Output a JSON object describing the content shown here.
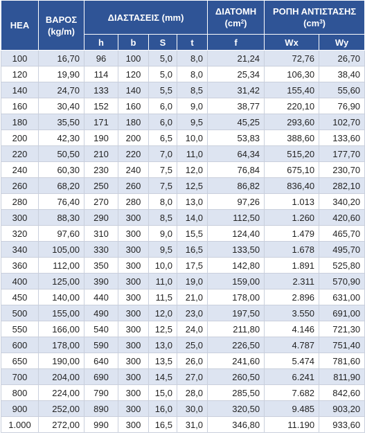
{
  "header": {
    "hea": "HEA",
    "weight": "ΒΑΡΟΣ",
    "weight_unit": "(kg/m)",
    "dimensions": "ΔΙΑΣΤΑΣΕΙΣ (mm)",
    "section": "ΔΙΑΤΟΜΗ",
    "section_unit_base": "(cm",
    "section_unit_exp": "2",
    "section_unit_close": ")",
    "moment": "ΡΟΠΗ ΑΝΤΙΣΤΑΣΗΣ",
    "moment_unit_base": "(cm",
    "moment_unit_exp": "3",
    "moment_unit_close": ")",
    "sub": [
      "h",
      "b",
      "S",
      "t",
      "f",
      "Wx",
      "Wy"
    ]
  },
  "rows": [
    [
      "100",
      "16,70",
      "96",
      "100",
      "5,0",
      "8,0",
      "21,24",
      "72,76",
      "26,70"
    ],
    [
      "120",
      "19,90",
      "114",
      "120",
      "5,0",
      "8,0",
      "25,34",
      "106,30",
      "38,40"
    ],
    [
      "140",
      "24,70",
      "133",
      "140",
      "5,5",
      "8,5",
      "31,42",
      "155,40",
      "55,60"
    ],
    [
      "160",
      "30,40",
      "152",
      "160",
      "6,0",
      "9,0",
      "38,77",
      "220,10",
      "76,90"
    ],
    [
      "180",
      "35,50",
      "171",
      "180",
      "6,0",
      "9,5",
      "45,25",
      "293,60",
      "102,70"
    ],
    [
      "200",
      "42,30",
      "190",
      "200",
      "6,5",
      "10,0",
      "53,83",
      "388,60",
      "133,60"
    ],
    [
      "220",
      "50,50",
      "210",
      "220",
      "7,0",
      "11,0",
      "64,34",
      "515,20",
      "177,70"
    ],
    [
      "240",
      "60,30",
      "230",
      "240",
      "7,5",
      "12,0",
      "76,84",
      "675,10",
      "230,70"
    ],
    [
      "260",
      "68,20",
      "250",
      "260",
      "7,5",
      "12,5",
      "86,82",
      "836,40",
      "282,10"
    ],
    [
      "280",
      "76,40",
      "270",
      "280",
      "8,0",
      "13,0",
      "97,26",
      "1.013",
      "340,20"
    ],
    [
      "300",
      "88,30",
      "290",
      "300",
      "8,5",
      "14,0",
      "112,50",
      "1.260",
      "420,60"
    ],
    [
      "320",
      "97,60",
      "310",
      "300",
      "9,0",
      "15,5",
      "124,40",
      "1.479",
      "465,70"
    ],
    [
      "340",
      "105,00",
      "330",
      "300",
      "9,5",
      "16,5",
      "133,50",
      "1.678",
      "495,70"
    ],
    [
      "360",
      "112,00",
      "350",
      "300",
      "10,0",
      "17,5",
      "142,80",
      "1.891",
      "525,80"
    ],
    [
      "400",
      "125,00",
      "390",
      "300",
      "11,0",
      "19,0",
      "159,00",
      "2.311",
      "570,90"
    ],
    [
      "450",
      "140,00",
      "440",
      "300",
      "11,5",
      "21,0",
      "178,00",
      "2.896",
      "631,00"
    ],
    [
      "500",
      "155,00",
      "490",
      "300",
      "12,0",
      "23,0",
      "197,50",
      "3.550",
      "691,00"
    ],
    [
      "550",
      "166,00",
      "540",
      "300",
      "12,5",
      "24,0",
      "211,80",
      "4.146",
      "721,30"
    ],
    [
      "600",
      "178,00",
      "590",
      "300",
      "13,0",
      "25,0",
      "226,50",
      "4.787",
      "751,40"
    ],
    [
      "650",
      "190,00",
      "640",
      "300",
      "13,5",
      "26,0",
      "241,60",
      "5.474",
      "781,60"
    ],
    [
      "700",
      "204,00",
      "690",
      "300",
      "14,5",
      "27,0",
      "260,50",
      "6.241",
      "811,90"
    ],
    [
      "800",
      "224,00",
      "790",
      "300",
      "15,0",
      "28,0",
      "285,50",
      "7.682",
      "842,60"
    ],
    [
      "900",
      "252,00",
      "890",
      "300",
      "16,0",
      "30,0",
      "320,50",
      "9.485",
      "903,20"
    ],
    [
      "1.000",
      "272,00",
      "990",
      "300",
      "16,5",
      "31,0",
      "346,80",
      "11.190",
      "933,60"
    ]
  ]
}
